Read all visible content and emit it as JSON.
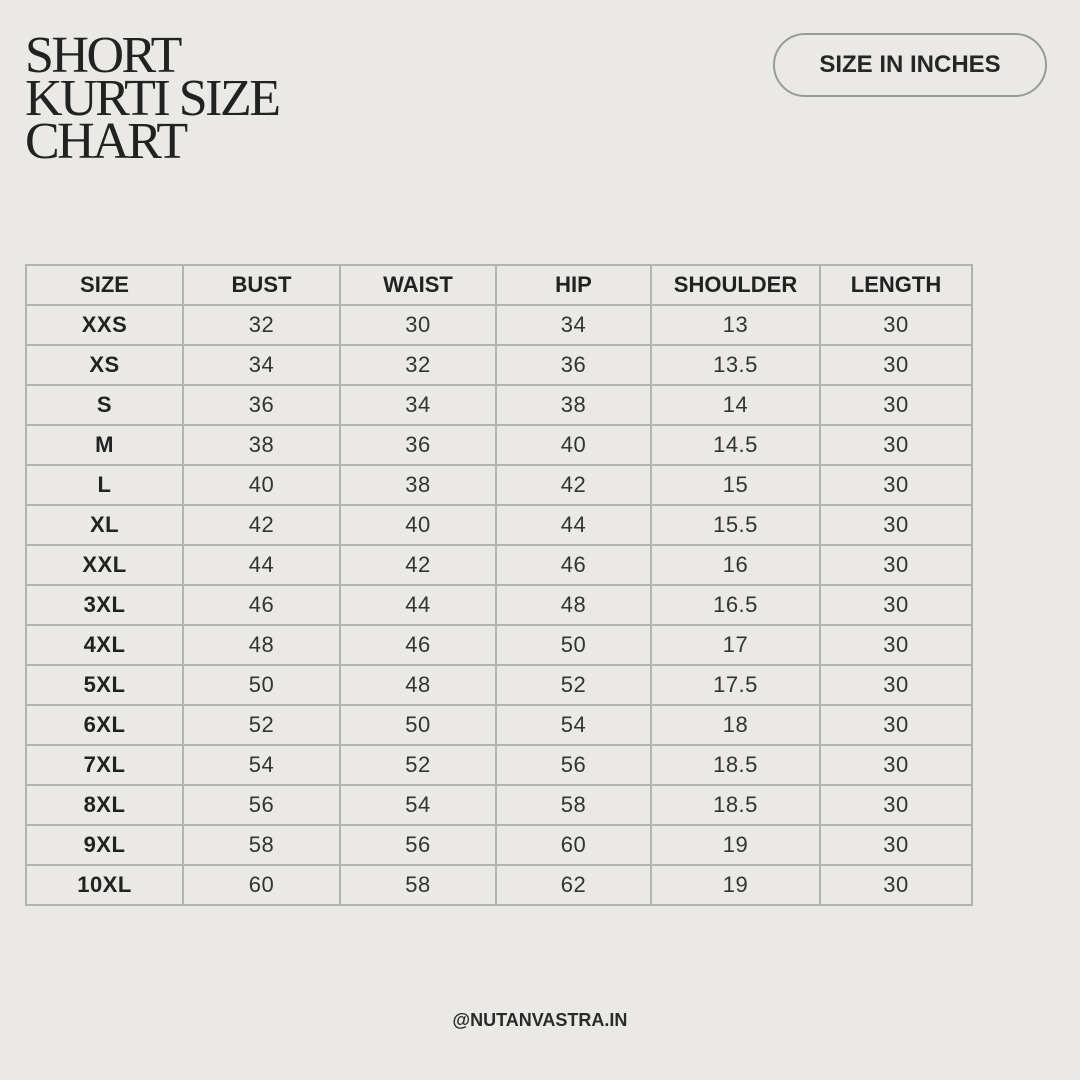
{
  "title_lines": [
    "SHORT",
    "KURTI SIZE",
    "CHART"
  ],
  "unit_badge": "SIZE IN INCHES",
  "table": {
    "headers": [
      "SIZE",
      "BUST",
      "WAIST",
      "HIP",
      "SHOULDER",
      "LENGTH"
    ],
    "rows": [
      [
        "XXS",
        "32",
        "30",
        "34",
        "13",
        "30"
      ],
      [
        "XS",
        "34",
        "32",
        "36",
        "13.5",
        "30"
      ],
      [
        "S",
        "36",
        "34",
        "38",
        "14",
        "30"
      ],
      [
        "M",
        "38",
        "36",
        "40",
        "14.5",
        "30"
      ],
      [
        "L",
        "40",
        "38",
        "42",
        "15",
        "30"
      ],
      [
        "XL",
        "42",
        "40",
        "44",
        "15.5",
        "30"
      ],
      [
        "XXL",
        "44",
        "42",
        "46",
        "16",
        "30"
      ],
      [
        "3XL",
        "46",
        "44",
        "48",
        "16.5",
        "30"
      ],
      [
        "4XL",
        "48",
        "46",
        "50",
        "17",
        "30"
      ],
      [
        "5XL",
        "50",
        "48",
        "52",
        "17.5",
        "30"
      ],
      [
        "6XL",
        "52",
        "50",
        "54",
        "18",
        "30"
      ],
      [
        "7XL",
        "54",
        "52",
        "56",
        "18.5",
        "30"
      ],
      [
        "8XL",
        "56",
        "54",
        "58",
        "18.5",
        "30"
      ],
      [
        "9XL",
        "58",
        "56",
        "60",
        "19",
        "30"
      ],
      [
        "10XL",
        "60",
        "58",
        "62",
        "19",
        "30"
      ]
    ]
  },
  "footer": "@NUTANVASTRA.IN",
  "colors": {
    "background": "#eae9e5",
    "border": "#b3b3b1",
    "text": "#222222"
  }
}
